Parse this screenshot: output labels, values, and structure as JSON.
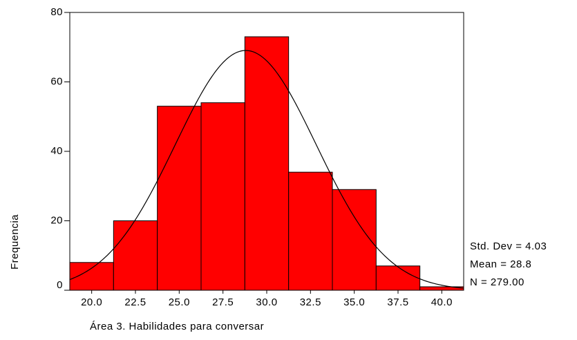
{
  "chart_data": {
    "type": "histogram",
    "bins": [
      18.75,
      21.25,
      23.75,
      26.25,
      28.75,
      31.25,
      33.75,
      36.25,
      38.75,
      41.25
    ],
    "values": [
      8,
      20,
      53,
      54,
      73,
      34,
      29,
      7,
      1
    ],
    "color": "#ff0000",
    "xlim": [
      18.75,
      41.25
    ],
    "ylim": [
      0,
      80
    ],
    "xticks": [
      {
        "value": 20,
        "label": "20.0"
      },
      {
        "value": 22.5,
        "label": "22.5"
      },
      {
        "value": 25,
        "label": "25.0"
      },
      {
        "value": 27.5,
        "label": "27.5"
      },
      {
        "value": 30,
        "label": "30.0"
      },
      {
        "value": 32.5,
        "label": "32.5"
      },
      {
        "value": 35,
        "label": "35.0"
      },
      {
        "value": 37.5,
        "label": "37.5"
      },
      {
        "value": 40,
        "label": "40.0"
      }
    ],
    "yticks": [
      0,
      20,
      40,
      60,
      80
    ],
    "x_label": "Área 3. Habilidades para conversar",
    "y_label": "Frequencia",
    "std_dev": {
      "value": 4.03,
      "label": "Std. Dev = 4.03"
    },
    "mean": {
      "value": 28.8,
      "label": "Mean = 28.8"
    },
    "n": {
      "value": 279,
      "label": "N = 279.00"
    }
  }
}
